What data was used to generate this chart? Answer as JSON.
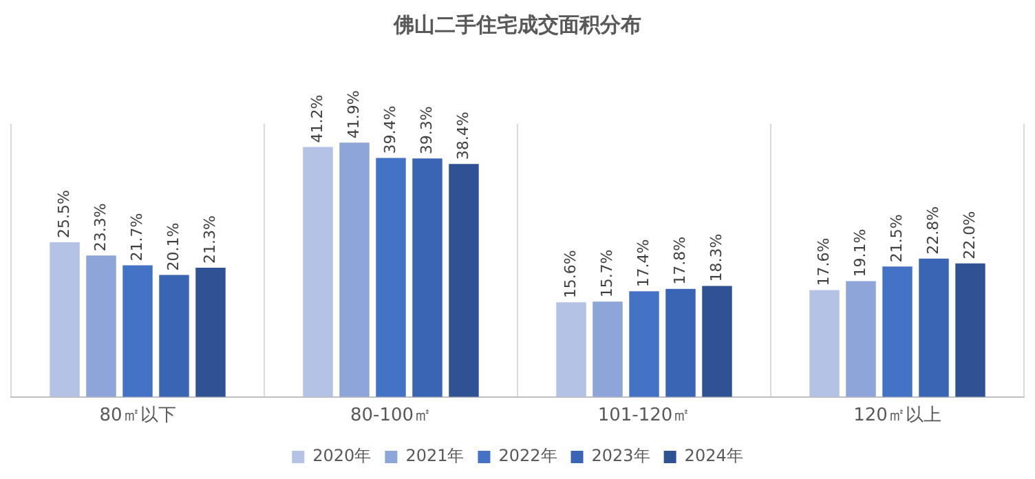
{
  "chart_data": {
    "type": "bar",
    "title": "佛山二手住宅成交面积分布",
    "categories": [
      "80㎡以下",
      "80-100㎡",
      "101-120㎡",
      "120㎡以上"
    ],
    "series": [
      {
        "name": "2020年",
        "color": "#b4c2e6",
        "values": [
          25.5,
          41.2,
          15.6,
          17.6
        ],
        "value_labels": [
          "25.5%",
          "41.2%",
          "15.6%",
          "17.6%"
        ]
      },
      {
        "name": "2021年",
        "color": "#8ea5da",
        "values": [
          23.3,
          41.9,
          15.7,
          19.1
        ],
        "value_labels": [
          "23.3%",
          "41.9%",
          "15.7%",
          "19.1%"
        ]
      },
      {
        "name": "2022年",
        "color": "#4472c4",
        "values": [
          21.7,
          39.4,
          17.4,
          21.5
        ],
        "value_labels": [
          "21.7%",
          "39.4%",
          "17.4%",
          "21.5%"
        ]
      },
      {
        "name": "2023年",
        "color": "#3a64b4",
        "values": [
          20.1,
          39.3,
          17.8,
          22.8
        ],
        "value_labels": [
          "20.1%",
          "39.3%",
          "17.8%",
          "22.8%"
        ]
      },
      {
        "name": "2024年",
        "color": "#2f5294",
        "values": [
          21.3,
          38.4,
          18.3,
          22.0
        ],
        "value_labels": [
          "21.3%",
          "38.4%",
          "18.3%",
          "22.0%"
        ]
      }
    ],
    "grid": "x",
    "legend": "bottom"
  }
}
